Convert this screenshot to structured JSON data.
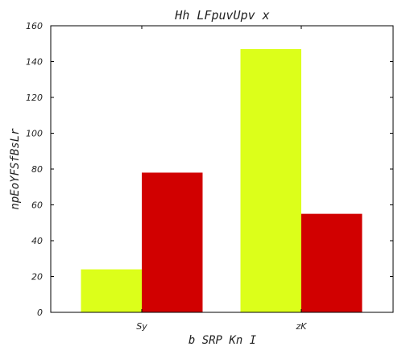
{
  "chart_data": {
    "type": "bar",
    "title": "Hh LFpuvUpv x",
    "xlabel": "b SRP  Kn  I",
    "ylabel": "npEoYFSfBsLr",
    "categories": [
      "Sy",
      "zK"
    ],
    "series": [
      {
        "values": [
          24,
          147
        ],
        "color": "#dcff1a"
      },
      {
        "values": [
          78,
          55
        ],
        "color": "#d10000"
      }
    ],
    "ylim": [
      0,
      160
    ],
    "yticks": [
      0,
      20,
      40,
      60,
      80,
      100,
      120,
      140,
      160
    ],
    "grid": false
  }
}
